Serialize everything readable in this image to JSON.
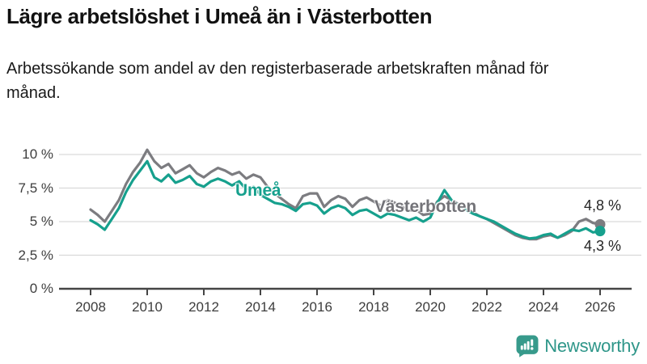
{
  "header": {
    "title": "Lägre arbetslöshet i Umeå än i Västerbotten",
    "subtitle": "Arbetssökande som andel av den registerbaserade arbetskraften månad för månad."
  },
  "footer": {
    "brand": "Newsworthy",
    "logo_icon": "bar-chart-speech-bubble-icon",
    "brand_color": "#379a8b"
  },
  "chart_data": {
    "type": "line",
    "title": "Lägre arbetslöshet i Umeå än i Västerbotten",
    "xlabel": "",
    "ylabel": "",
    "grid": true,
    "x_start": 2008,
    "x_step": 0.25,
    "x_ticks": [
      2008,
      2010,
      2012,
      2014,
      2016,
      2018,
      2020,
      2022,
      2024,
      2026
    ],
    "y_ticks": [
      {
        "value": 0,
        "label": "0 %"
      },
      {
        "value": 2.5,
        "label": "2,5 %"
      },
      {
        "value": 5,
        "label": "5 %"
      },
      {
        "value": 7.5,
        "label": "7,5 %"
      },
      {
        "value": 10,
        "label": "10 %"
      }
    ],
    "ylim": [
      0,
      11
    ],
    "xlim": [
      2007.8,
      2026.5
    ],
    "legend_position": "inline-labels",
    "series": [
      {
        "name": "Västerbotten",
        "color": "#7c7c80",
        "end_label": "4,8 %",
        "end_value": 4.8,
        "values": [
          5.9,
          5.5,
          5.0,
          5.8,
          6.6,
          7.8,
          8.7,
          9.4,
          10.35,
          9.5,
          9.0,
          9.3,
          8.6,
          8.9,
          9.2,
          8.6,
          8.3,
          8.7,
          9.0,
          8.8,
          8.5,
          8.7,
          8.2,
          8.5,
          8.3,
          7.6,
          7.1,
          6.7,
          6.3,
          6.0,
          6.9,
          7.1,
          7.1,
          6.1,
          6.6,
          6.9,
          6.7,
          6.1,
          6.6,
          6.8,
          6.5,
          6.2,
          6.6,
          6.4,
          6.1,
          5.8,
          5.9,
          5.5,
          5.6,
          6.5,
          6.9,
          6.6,
          6.3,
          6.0,
          5.7,
          5.4,
          5.2,
          4.9,
          4.6,
          4.3,
          4.0,
          3.8,
          3.7,
          3.7,
          3.9,
          4.0,
          3.8,
          4.0,
          4.3,
          5.0,
          5.2,
          4.9,
          4.8
        ]
      },
      {
        "name": "Umeå",
        "color": "#16a08d",
        "end_label": "4,3 %",
        "end_value": 4.3,
        "values": [
          5.1,
          4.8,
          4.4,
          5.2,
          6.0,
          7.2,
          8.1,
          8.8,
          9.5,
          8.3,
          8.0,
          8.5,
          7.9,
          8.1,
          8.4,
          7.8,
          7.6,
          8.0,
          8.2,
          8.0,
          7.7,
          8.0,
          7.4,
          7.6,
          7.0,
          6.7,
          6.4,
          6.3,
          6.1,
          5.8,
          6.3,
          6.4,
          6.2,
          5.6,
          6.0,
          6.2,
          6.0,
          5.5,
          5.8,
          5.9,
          5.6,
          5.3,
          5.6,
          5.5,
          5.3,
          5.1,
          5.3,
          5.0,
          5.3,
          6.4,
          7.35,
          6.6,
          6.2,
          5.9,
          5.6,
          5.4,
          5.2,
          5.0,
          4.7,
          4.4,
          4.1,
          3.9,
          3.75,
          3.8,
          4.0,
          4.1,
          3.8,
          4.1,
          4.4,
          4.3,
          4.5,
          4.2,
          4.3
        ]
      }
    ]
  }
}
